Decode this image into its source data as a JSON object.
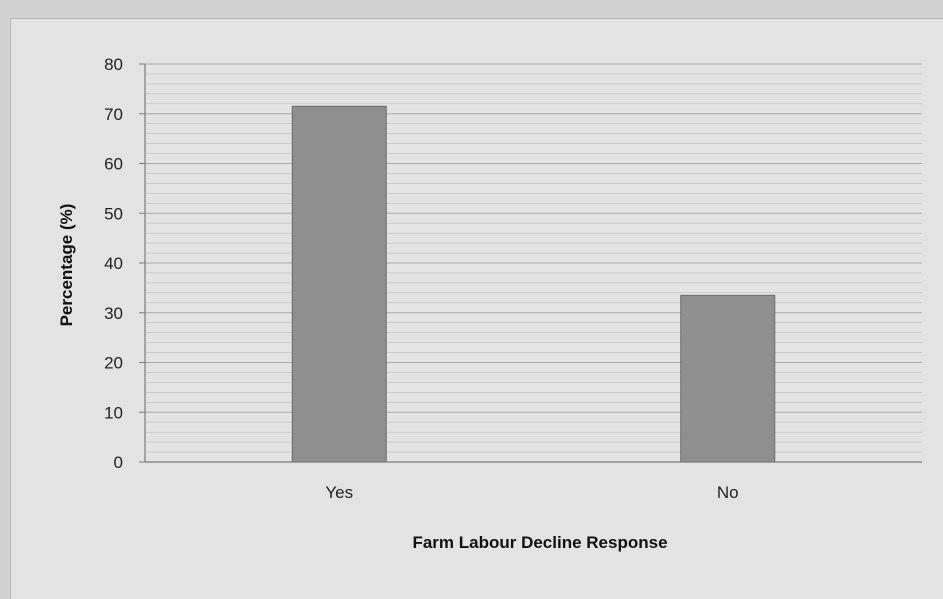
{
  "chart_data": {
    "type": "bar",
    "categories": [
      "Yes",
      "No"
    ],
    "values": [
      71.5,
      33.5
    ],
    "xlabel": "Farm Labour Decline Response",
    "ylabel": "Percentage (%)",
    "ylim": [
      0,
      80
    ],
    "yticks": [
      0,
      10,
      20,
      30,
      40,
      50,
      60,
      70,
      80
    ],
    "grid": true,
    "legend": "none",
    "colors": {
      "bar": "#8f8f8f",
      "bar_stroke": "#6b6b6b",
      "grid": "#a9a9a9",
      "background": "#e3e3e3"
    }
  }
}
